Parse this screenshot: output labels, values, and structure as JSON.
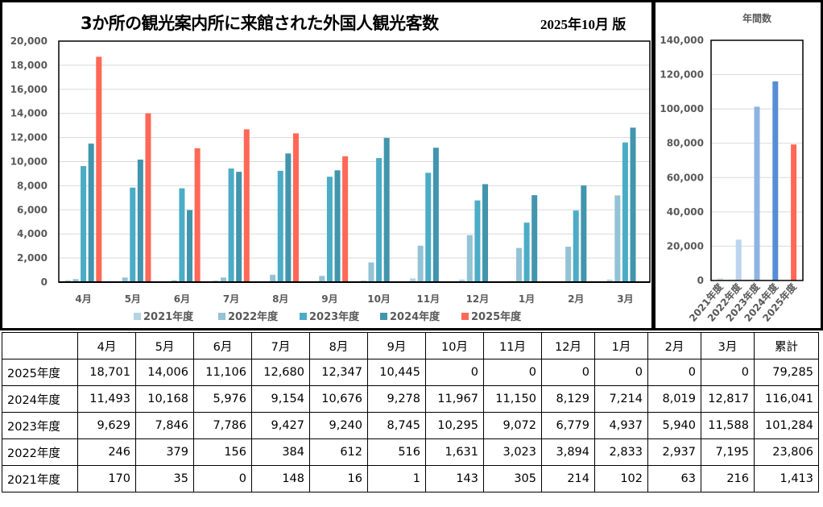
{
  "title": "3か所の観光案内所に来館された外国人観光客数",
  "edition": "2025年10月 版",
  "colors": {
    "2021年度": "#b4d4e3",
    "2022年度": "#93c3d5",
    "2023年度": "#4bacc6",
    "2024年度": "#4195ad",
    "2025年度": "#ff6756",
    "annual_2021": "#d6e4f5",
    "annual_2022": "#bcd4ef",
    "annual_2023": "#8db3e2",
    "annual_2024": "#558ed5",
    "annual_2025": "#ff6756",
    "gridline": "#d9d9d9"
  },
  "chart_data": [
    {
      "type": "bar",
      "title": "3か所の観光案内所に来館された外国人観光客数",
      "categories": [
        "4月",
        "5月",
        "6月",
        "7月",
        "8月",
        "9月",
        "10月",
        "11月",
        "12月",
        "1月",
        "2月",
        "3月"
      ],
      "series": [
        {
          "name": "2021年度",
          "values": [
            170,
            35,
            0,
            148,
            16,
            1,
            143,
            305,
            214,
            102,
            63,
            216
          ]
        },
        {
          "name": "2022年度",
          "values": [
            246,
            379,
            156,
            384,
            612,
            516,
            1631,
            3023,
            3894,
            2833,
            2937,
            7195
          ]
        },
        {
          "name": "2023年度",
          "values": [
            9629,
            7846,
            7786,
            9427,
            9240,
            8745,
            10295,
            9072,
            6779,
            4937,
            5940,
            11588
          ]
        },
        {
          "name": "2024年度",
          "values": [
            11493,
            10168,
            5976,
            9154,
            10676,
            9278,
            11967,
            11150,
            8129,
            7214,
            8019,
            12817
          ]
        },
        {
          "name": "2025年度",
          "values": [
            18701,
            14006,
            11106,
            12680,
            12347,
            10445,
            0,
            0,
            0,
            0,
            0,
            0
          ]
        }
      ],
      "ylim": [
        0,
        20000
      ],
      "yticks": [
        "0",
        "2,000",
        "4,000",
        "6,000",
        "8,000",
        "10,000",
        "12,000",
        "14,000",
        "16,000",
        "18,000",
        "20,000"
      ],
      "grid": true,
      "legend": "bottom"
    },
    {
      "type": "bar",
      "title": "年間数",
      "categories": [
        "2021年度",
        "2022年度",
        "2023年度",
        "2024年度",
        "2025年度"
      ],
      "values": [
        1413,
        23806,
        101284,
        116041,
        79285
      ],
      "ylim": [
        0,
        140000
      ],
      "yticks": [
        "0",
        "20,000",
        "40,000",
        "60,000",
        "80,000",
        "100,000",
        "120,000",
        "140,000"
      ],
      "grid": true
    }
  ],
  "table": {
    "headers": [
      "",
      "4月",
      "5月",
      "6月",
      "7月",
      "8月",
      "9月",
      "10月",
      "11月",
      "12月",
      "1月",
      "2月",
      "3月",
      "累計"
    ],
    "rows": [
      {
        "label": "2025年度",
        "cells": [
          "18,701",
          "14,006",
          "11,106",
          "12,680",
          "12,347",
          "10,445",
          "0",
          "0",
          "0",
          "0",
          "0",
          "0",
          "79,285"
        ]
      },
      {
        "label": "2024年度",
        "cells": [
          "11,493",
          "10,168",
          "5,976",
          "9,154",
          "10,676",
          "9,278",
          "11,967",
          "11,150",
          "8,129",
          "7,214",
          "8,019",
          "12,817",
          "116,041"
        ]
      },
      {
        "label": "2023年度",
        "cells": [
          "9,629",
          "7,846",
          "7,786",
          "9,427",
          "9,240",
          "8,745",
          "10,295",
          "9,072",
          "6,779",
          "4,937",
          "5,940",
          "11,588",
          "101,284"
        ]
      },
      {
        "label": "2022年度",
        "cells": [
          "246",
          "379",
          "156",
          "384",
          "612",
          "516",
          "1,631",
          "3,023",
          "3,894",
          "2,833",
          "2,937",
          "7,195",
          "23,806"
        ]
      },
      {
        "label": "2021年度",
        "cells": [
          "170",
          "35",
          "0",
          "148",
          "16",
          "1",
          "143",
          "305",
          "214",
          "102",
          "63",
          "216",
          "1,413"
        ]
      }
    ]
  }
}
